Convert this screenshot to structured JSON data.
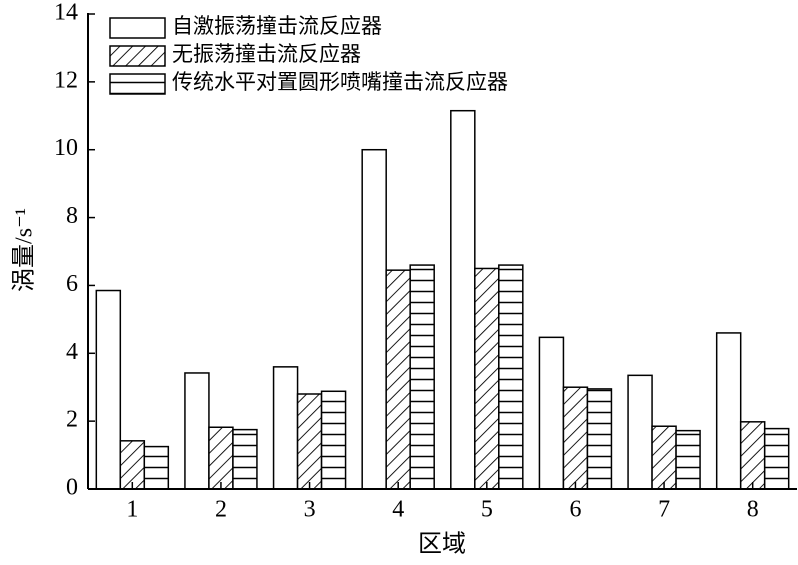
{
  "chart_data": {
    "type": "bar",
    "xlabel": "区域",
    "ylabel": "涡量/s⁻¹",
    "categories": [
      "1",
      "2",
      "3",
      "4",
      "5",
      "6",
      "7",
      "8"
    ],
    "series": [
      {
        "name": "自激振荡撞击流反应器",
        "color": "#ffffff",
        "hatch": "none",
        "values": [
          5.85,
          3.42,
          3.6,
          10.0,
          11.15,
          4.47,
          3.35,
          4.6
        ]
      },
      {
        "name": "无振荡撞击流反应器",
        "color": "#ffffff",
        "hatch": "diagonal",
        "values": [
          1.42,
          1.82,
          2.8,
          6.45,
          6.5,
          3.0,
          1.85,
          1.98
        ]
      },
      {
        "name": "传统水平对置圆形喷嘴撞击流反应器",
        "color": "#ffffff",
        "hatch": "horizontal",
        "values": [
          1.25,
          1.75,
          2.88,
          6.6,
          6.6,
          2.95,
          1.72,
          1.78
        ]
      }
    ],
    "ylim": [
      0,
      14
    ],
    "yticks": [
      0,
      2,
      4,
      6,
      8,
      10,
      12,
      14
    ],
    "legend": "upper left"
  }
}
